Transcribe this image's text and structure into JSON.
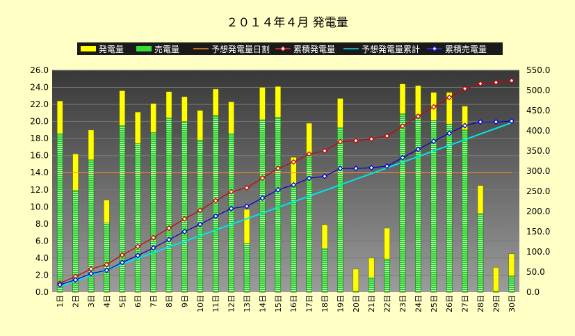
{
  "chart_data": {
    "type": "bar",
    "title": "２０１４年４月 発電量",
    "categories": [
      "1日",
      "2日",
      "3日",
      "4日",
      "5日",
      "6日",
      "7日",
      "8日",
      "9日",
      "10日",
      "11日",
      "12日",
      "13日",
      "14日",
      "15日",
      "16日",
      "17日",
      "18日",
      "19日",
      "20日",
      "21日",
      "22日",
      "23日",
      "24日",
      "25日",
      "26日",
      "27日",
      "28日",
      "29日",
      "30日"
    ],
    "legend": {
      "position": "top",
      "entries": [
        "発電量",
        "売電量",
        "予想発電量日割",
        "累積発電量",
        "予想発電量累計",
        "累積売電量"
      ]
    },
    "left_axis": {
      "ylim": [
        0,
        26
      ],
      "ticks": [
        "0.0",
        "2.0",
        "4.0",
        "6.0",
        "8.0",
        "10.0",
        "12.0",
        "14.0",
        "16.0",
        "18.0",
        "20.0",
        "22.0",
        "24.0",
        "26.0"
      ]
    },
    "right_axis": {
      "ylim": [
        0,
        550
      ],
      "ticks": [
        "0.0",
        "50.0",
        "100.0",
        "150.0",
        "200.0",
        "250.0",
        "300.0",
        "350.0",
        "400.0",
        "450.0",
        "500.0",
        "550.0"
      ]
    },
    "series": [
      {
        "name": "発電量",
        "kind": "bar",
        "axis": "left",
        "color": "#ffff00",
        "values": [
          22.4,
          16.2,
          19.0,
          10.8,
          23.6,
          21.1,
          22.1,
          23.5,
          22.9,
          21.3,
          23.8,
          22.3,
          9.7,
          24.0,
          24.1,
          15.8,
          19.8,
          7.9,
          22.7,
          2.7,
          4.0,
          7.5,
          24.4,
          24.2,
          23.4,
          23.4,
          21.8,
          12.5,
          2.9,
          4.5
        ]
      },
      {
        "name": "売電量",
        "kind": "bar",
        "axis": "left",
        "color": "#33dd33",
        "values": [
          18.6,
          11.9,
          15.5,
          8.1,
          19.5,
          17.4,
          18.7,
          20.4,
          20.0,
          17.8,
          20.7,
          18.6,
          5.7,
          20.2,
          20.5,
          12.4,
          16.2,
          5.1,
          19.3,
          0.1,
          1.7,
          3.9,
          20.9,
          20.8,
          20.1,
          19.7,
          19.0,
          9.2,
          0.1,
          1.9
        ]
      },
      {
        "name": "予想発電量日割",
        "kind": "line",
        "axis": "left",
        "color": "#ff8c1a",
        "values": [
          14.0,
          14.0,
          14.0,
          14.0,
          14.0,
          14.0,
          14.0,
          14.0,
          14.0,
          14.0,
          14.0,
          14.0,
          14.0,
          14.0,
          14.0,
          14.0,
          14.0,
          14.0,
          14.0,
          14.0,
          14.0,
          14.0,
          14.0,
          14.0,
          14.0,
          14.0,
          14.0,
          14.0,
          14.0,
          14.0
        ]
      },
      {
        "name": "累積発電量",
        "kind": "line",
        "axis": "right",
        "color": "#cc0000",
        "values": [
          22.4,
          38.6,
          57.6,
          68.4,
          92.0,
          113.1,
          135.2,
          158.7,
          181.6,
          202.9,
          226.7,
          249.0,
          258.7,
          282.7,
          306.8,
          322.6,
          342.4,
          350.3,
          373.0,
          375.7,
          379.7,
          387.2,
          411.6,
          435.8,
          459.2,
          482.6,
          504.4,
          516.9,
          519.8,
          524.3
        ]
      },
      {
        "name": "予想発電量累計",
        "kind": "line",
        "axis": "right",
        "color": "#00e5e5",
        "values": [
          14,
          28,
          42,
          56,
          70,
          84,
          98,
          112,
          126,
          140,
          154,
          168,
          182,
          196,
          210,
          224,
          238,
          252,
          266,
          280,
          294,
          308,
          322,
          336,
          350,
          364,
          378,
          392,
          406,
          420
        ]
      },
      {
        "name": "累積売電量",
        "kind": "line",
        "axis": "right",
        "color": "#0000cc",
        "values": [
          18.6,
          30.5,
          46.0,
          54.1,
          73.6,
          91.0,
          109.7,
          130.1,
          150.1,
          167.9,
          188.6,
          207.2,
          212.9,
          233.1,
          253.6,
          266.0,
          282.2,
          287.3,
          306.6,
          306.7,
          308.4,
          312.3,
          333.2,
          354.0,
          374.1,
          393.8,
          412.8,
          422.0,
          422.1,
          424.0
        ]
      }
    ]
  }
}
